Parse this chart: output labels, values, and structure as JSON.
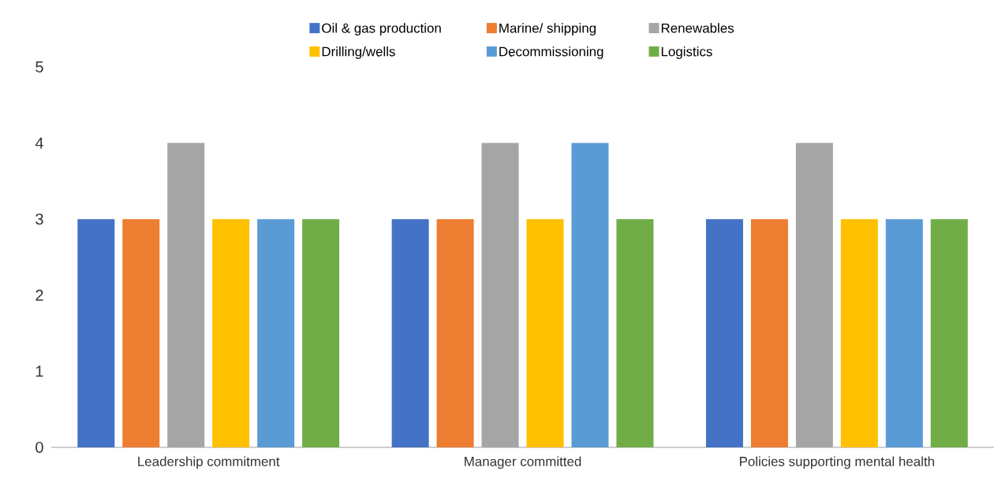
{
  "chart_data": {
    "type": "bar",
    "categories": [
      "Leadership commitment",
      "Manager committed",
      "Policies supporting mental health"
    ],
    "series": [
      {
        "name": "Oil & gas production",
        "color": "#4472c4",
        "values": [
          3,
          3,
          3
        ]
      },
      {
        "name": "Marine/ shipping",
        "color": "#ed7d31",
        "values": [
          3,
          3,
          3
        ]
      },
      {
        "name": "Renewables",
        "color": "#a5a5a5",
        "values": [
          4,
          4,
          4
        ]
      },
      {
        "name": "Drilling/wells",
        "color": "#ffc000",
        "values": [
          3,
          3,
          3
        ]
      },
      {
        "name": "Decommissioning",
        "color": "#5b9bd5",
        "values": [
          3,
          4,
          3
        ]
      },
      {
        "name": "Logistics",
        "color": "#70ad47",
        "values": [
          3,
          3,
          3
        ]
      }
    ],
    "ylim": [
      0,
      5
    ],
    "yticks": [
      0,
      1,
      2,
      3,
      4,
      5
    ],
    "grid": false,
    "legend": "top"
  }
}
